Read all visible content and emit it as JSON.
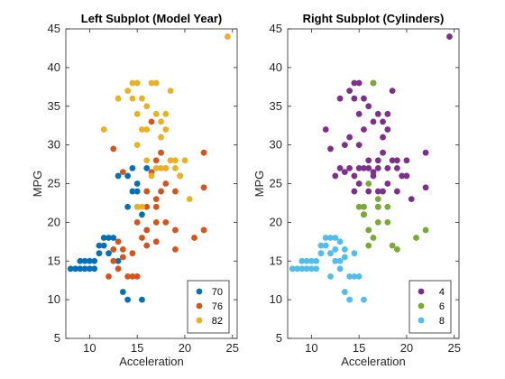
{
  "chart_data": [
    {
      "type": "scatter",
      "title": "Left Subplot (Model Year)",
      "xlabel": "Acceleration",
      "ylabel": "MPG",
      "xlim": [
        7.5,
        25.5
      ],
      "ylim": [
        5,
        45
      ],
      "xticks": [
        10,
        15,
        20,
        25
      ],
      "yticks": [
        5,
        10,
        15,
        20,
        25,
        30,
        35,
        40,
        45
      ],
      "legend_position": "bottom-right",
      "series": [
        {
          "name": "70",
          "color": "#0072BD",
          "points": [
            [
              8,
              14
            ],
            [
              8.5,
              14
            ],
            [
              9,
              15
            ],
            [
              9,
              14
            ],
            [
              9.5,
              14
            ],
            [
              9.5,
              15
            ],
            [
              10,
              15
            ],
            [
              10,
              14
            ],
            [
              10.5,
              15
            ],
            [
              10.5,
              14
            ],
            [
              11,
              17
            ],
            [
              11,
              16
            ],
            [
              11.5,
              18
            ],
            [
              11.5,
              17
            ],
            [
              12,
              18
            ],
            [
              12,
              16
            ],
            [
              12.5,
              18
            ],
            [
              13,
              15
            ],
            [
              13.5,
              11
            ],
            [
              14,
              10
            ],
            [
              14,
              26
            ],
            [
              14.5,
              24
            ],
            [
              14.5,
              27
            ],
            [
              15,
              24
            ],
            [
              15,
              25
            ],
            [
              15,
              22
            ],
            [
              15.5,
              10
            ],
            [
              15.5,
              21
            ],
            [
              16,
              27
            ],
            [
              13,
              26
            ],
            [
              14,
              22
            ]
          ]
        },
        {
          "name": "76",
          "color": "#D95319",
          "points": [
            [
              12,
              13
            ],
            [
              12.5,
              15
            ],
            [
              12.5,
              16.5
            ],
            [
              13,
              17.5
            ],
            [
              13,
              14
            ],
            [
              13.5,
              15.5
            ],
            [
              13.5,
              16.5
            ],
            [
              14,
              13
            ],
            [
              14.5,
              13
            ],
            [
              14.5,
              16
            ],
            [
              15,
              13
            ],
            [
              15,
              20
            ],
            [
              15.5,
              18
            ],
            [
              16,
              19
            ],
            [
              16,
              17
            ],
            [
              16.5,
              26.5
            ],
            [
              16,
              24
            ],
            [
              17,
              17.5
            ],
            [
              17,
              20
            ],
            [
              17,
              22
            ],
            [
              17,
              23
            ],
            [
              17.5,
              29
            ],
            [
              17.5,
              24
            ],
            [
              18,
              20
            ],
            [
              18,
              25
            ],
            [
              18,
              27
            ],
            [
              18.5,
              28
            ],
            [
              19,
              19
            ],
            [
              19,
              16.5
            ],
            [
              19,
              24
            ],
            [
              19.5,
              26
            ],
            [
              21,
              18
            ],
            [
              22,
              19
            ],
            [
              22,
              24.5
            ],
            [
              22,
              29
            ],
            [
              12.5,
              29.5
            ],
            [
              16,
              22
            ],
            [
              17,
              28
            ],
            [
              16.5,
              33
            ],
            [
              13.5,
              26.5
            ]
          ]
        },
        {
          "name": "82",
          "color": "#EDB120",
          "points": [
            [
              11.5,
              32
            ],
            [
              13,
              36
            ],
            [
              14,
              37
            ],
            [
              14.5,
              38
            ],
            [
              14.5,
              36
            ],
            [
              15,
              38
            ],
            [
              15,
              34
            ],
            [
              15.5,
              32
            ],
            [
              15,
              30
            ],
            [
              15.5,
              36
            ],
            [
              16,
              35
            ],
            [
              16.5,
              38
            ],
            [
              16.5,
              26
            ],
            [
              17,
              38
            ],
            [
              17,
              34
            ],
            [
              17,
              27
            ],
            [
              17.5,
              33
            ],
            [
              17.5,
              31
            ],
            [
              18,
              34
            ],
            [
              18,
              27
            ],
            [
              18.5,
              37
            ],
            [
              18.5,
              28
            ],
            [
              19,
              27
            ],
            [
              19,
              28
            ],
            [
              19.5,
              26
            ],
            [
              20,
              28
            ],
            [
              20.5,
              23
            ],
            [
              15,
              22
            ],
            [
              15.5,
              22
            ],
            [
              16,
              28
            ],
            [
              24.5,
              44
            ],
            [
              16,
              32
            ],
            [
              17.5,
              27
            ],
            [
              18,
              32
            ]
          ]
        }
      ]
    },
    {
      "type": "scatter",
      "title": "Right Subplot (Cylinders)",
      "xlabel": "Acceleration",
      "ylabel": "MPG",
      "xlim": [
        7.5,
        25.5
      ],
      "ylim": [
        5,
        45
      ],
      "xticks": [
        10,
        15,
        20,
        25
      ],
      "yticks": [
        5,
        10,
        15,
        20,
        25,
        30,
        35,
        40,
        45
      ],
      "legend_position": "bottom-right",
      "series": [
        {
          "name": "4",
          "color": "#7E2F8E",
          "points": [
            [
              11.5,
              32
            ],
            [
              12,
              29.5
            ],
            [
              12.5,
              26
            ],
            [
              13,
              36
            ],
            [
              13,
              27
            ],
            [
              13.5,
              30
            ],
            [
              13.5,
              26.5
            ],
            [
              14,
              37
            ],
            [
              14,
              27
            ],
            [
              14,
              31
            ],
            [
              14.5,
              38
            ],
            [
              14.5,
              36
            ],
            [
              14.5,
              26
            ],
            [
              14.5,
              24
            ],
            [
              15,
              38
            ],
            [
              15,
              34
            ],
            [
              15,
              30
            ],
            [
              15,
              27
            ],
            [
              15,
              25
            ],
            [
              15.5,
              32
            ],
            [
              15.5,
              36
            ],
            [
              15.5,
              27
            ],
            [
              15.5,
              22
            ],
            [
              15.5,
              21
            ],
            [
              16,
              35
            ],
            [
              16,
              27
            ],
            [
              16,
              24
            ],
            [
              16,
              28
            ],
            [
              16.5,
              38
            ],
            [
              16.5,
              26
            ],
            [
              16.5,
              33
            ],
            [
              16.5,
              26.5
            ],
            [
              17,
              34
            ],
            [
              17,
              27
            ],
            [
              17,
              28
            ],
            [
              17,
              24
            ],
            [
              17,
              22
            ],
            [
              17.5,
              33
            ],
            [
              17.5,
              31
            ],
            [
              17.5,
              29
            ],
            [
              17.5,
              24
            ],
            [
              18,
              34
            ],
            [
              18,
              27
            ],
            [
              18,
              25
            ],
            [
              18,
              32
            ],
            [
              18.5,
              37
            ],
            [
              18.5,
              28
            ],
            [
              19,
              27
            ],
            [
              19,
              28
            ],
            [
              19,
              24
            ],
            [
              19.5,
              26
            ],
            [
              20,
              28
            ],
            [
              20,
              26
            ],
            [
              20.5,
              23
            ],
            [
              22,
              24.5
            ],
            [
              22,
              29
            ],
            [
              24.5,
              44
            ]
          ]
        },
        {
          "name": "6",
          "color": "#77AC30",
          "points": [
            [
              15,
              22
            ],
            [
              15.5,
              22
            ],
            [
              15.5,
              21
            ],
            [
              16,
              19
            ],
            [
              16,
              25
            ],
            [
              16,
              17
            ],
            [
              16.5,
              38
            ],
            [
              16.5,
              18
            ],
            [
              17,
              20
            ],
            [
              17,
              23
            ],
            [
              17,
              22
            ],
            [
              18,
              20
            ],
            [
              18,
              22
            ],
            [
              18.5,
              17
            ],
            [
              19,
              16.5
            ],
            [
              21,
              18
            ],
            [
              22,
              19
            ]
          ]
        },
        {
          "name": "8",
          "color": "#4DBEEE",
          "points": [
            [
              8,
              14
            ],
            [
              8.5,
              14
            ],
            [
              9,
              15
            ],
            [
              9,
              14
            ],
            [
              9.5,
              14
            ],
            [
              9.5,
              15
            ],
            [
              10,
              15
            ],
            [
              10,
              14
            ],
            [
              10.5,
              15
            ],
            [
              10.5,
              14
            ],
            [
              11,
              17
            ],
            [
              11,
              16
            ],
            [
              11.5,
              18
            ],
            [
              11.5,
              17
            ],
            [
              12,
              18
            ],
            [
              12,
              16
            ],
            [
              12,
              13
            ],
            [
              12.5,
              18
            ],
            [
              12.5,
              15
            ],
            [
              12.5,
              16.5
            ],
            [
              13,
              15
            ],
            [
              13,
              17.5
            ],
            [
              13,
              14
            ],
            [
              13.5,
              11
            ],
            [
              13.5,
              15.5
            ],
            [
              13.5,
              16.5
            ],
            [
              14,
              13
            ],
            [
              14,
              10
            ],
            [
              14.5,
              13
            ],
            [
              14.5,
              16
            ],
            [
              15,
              13
            ],
            [
              15.5,
              10
            ]
          ]
        }
      ]
    }
  ]
}
